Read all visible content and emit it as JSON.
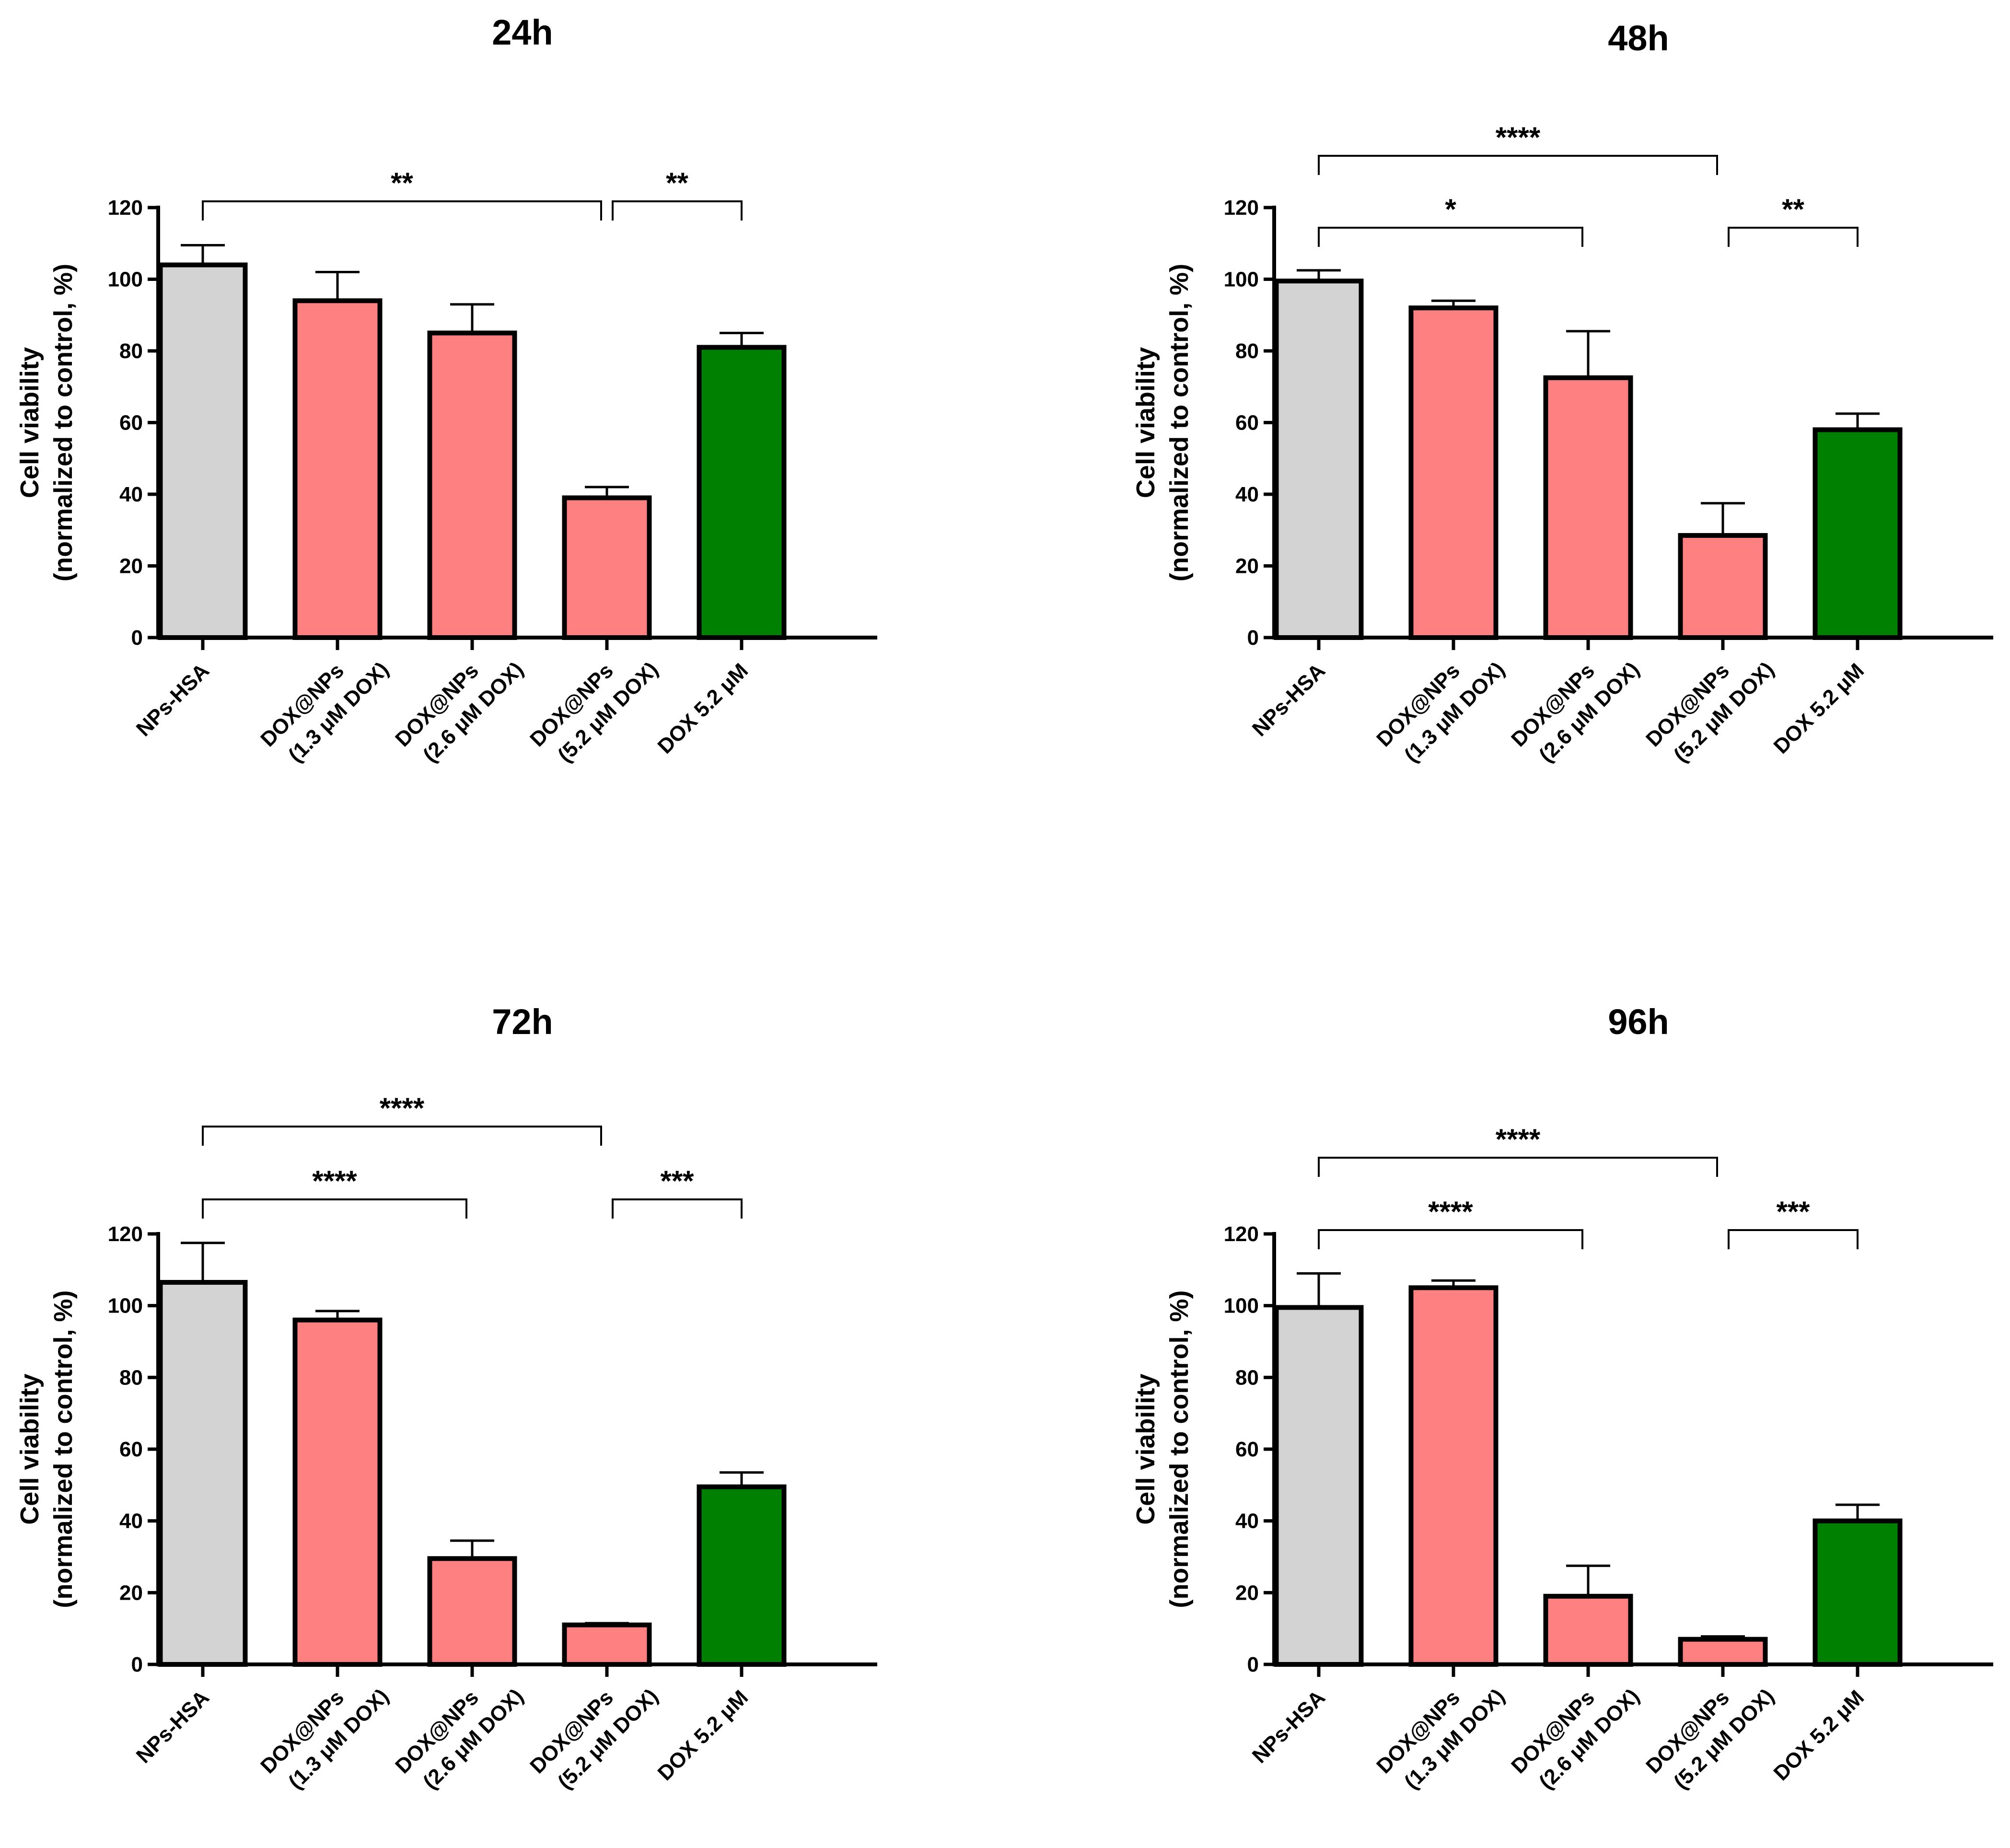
{
  "chart_data": [
    {
      "type": "bar",
      "title": "24h",
      "ylabel_line1": "Cell viability",
      "ylabel_line2": "(normalized to control, %)",
      "ylim": [
        0,
        120
      ],
      "yticks": [
        "0",
        "20",
        "40",
        "60",
        "80",
        "100",
        "120"
      ],
      "categories": [
        {
          "line1": "NPs-HSA",
          "line2": ""
        },
        {
          "line1": "DOX@NPs",
          "line2": "(1.3 μM DOX)"
        },
        {
          "line1": "DOX@NPs",
          "line2": "(2.6 μM DOX)"
        },
        {
          "line1": "DOX@NPs",
          "line2": "(5.2 μM DOX)"
        },
        {
          "line1": "DOX 5.2 μM",
          "line2": ""
        }
      ],
      "values": [
        104,
        94,
        85,
        39,
        81
      ],
      "errors": [
        5.5,
        8,
        8,
        3,
        4
      ],
      "colors": [
        "#d3d3d3",
        "#ff8080",
        "#ff8080",
        "#ff8080",
        "#008000"
      ],
      "significance": [
        {
          "from": 0,
          "to": 3,
          "level": 2,
          "label": "**"
        },
        {
          "from": 3,
          "to": 4,
          "level": 2,
          "label": "**"
        }
      ]
    },
    {
      "type": "bar",
      "title": "48h",
      "ylabel_line1": "Cell viability",
      "ylabel_line2": "(normalized to control, %)",
      "ylim": [
        0,
        120
      ],
      "yticks": [
        "0",
        "20",
        "40",
        "60",
        "80",
        "100",
        "120"
      ],
      "categories": [
        {
          "line1": "NPs-HSA",
          "line2": ""
        },
        {
          "line1": "DOX@NPs",
          "line2": "(1.3 μM DOX)"
        },
        {
          "line1": "DOX@NPs",
          "line2": "(2.6 μM DOX)"
        },
        {
          "line1": "DOX@NPs",
          "line2": "(5.2 μM DOX)"
        },
        {
          "line1": "DOX 5.2 μM",
          "line2": ""
        }
      ],
      "values": [
        99.5,
        92,
        72.5,
        28.5,
        58
      ],
      "errors": [
        3,
        2,
        13,
        9,
        4.5
      ],
      "colors": [
        "#d3d3d3",
        "#ff8080",
        "#ff8080",
        "#ff8080",
        "#008000"
      ],
      "significance": [
        {
          "from": 0,
          "to": 3,
          "level": 2,
          "label": "****"
        },
        {
          "from": 0,
          "to": 2,
          "level": 1,
          "label": "*"
        },
        {
          "from": 3,
          "to": 4,
          "level": 1,
          "label": "**"
        }
      ]
    },
    {
      "type": "bar",
      "title": "72h",
      "ylabel_line1": "Cell viability",
      "ylabel_line2": "(normalized to control, %)",
      "ylim": [
        0,
        120
      ],
      "yticks": [
        "0",
        "20",
        "40",
        "60",
        "80",
        "100",
        "120"
      ],
      "categories": [
        {
          "line1": "NPs-HSA",
          "line2": ""
        },
        {
          "line1": "DOX@NPs",
          "line2": "(1.3 μM DOX)"
        },
        {
          "line1": "DOX@NPs",
          "line2": "(2.6 μM DOX)"
        },
        {
          "line1": "DOX@NPs",
          "line2": "(5.2 μM DOX)"
        },
        {
          "line1": "DOX 5.2 μM",
          "line2": ""
        }
      ],
      "values": [
        106.5,
        96,
        29.5,
        11,
        49.5
      ],
      "errors": [
        11,
        2.5,
        5,
        0.5,
        4
      ],
      "colors": [
        "#d3d3d3",
        "#ff8080",
        "#ff8080",
        "#ff8080",
        "#008000"
      ],
      "significance": [
        {
          "from": 0,
          "to": 3,
          "level": 2,
          "label": "****"
        },
        {
          "from": 0,
          "to": 2,
          "level": 1,
          "label": "****"
        },
        {
          "from": 3,
          "to": 4,
          "level": 1,
          "label": "***"
        }
      ]
    },
    {
      "type": "bar",
      "title": "96h",
      "ylabel_line1": "Cell viability",
      "ylabel_line2": "(normalized to control, %)",
      "ylim": [
        0,
        120
      ],
      "yticks": [
        "0",
        "20",
        "40",
        "60",
        "80",
        "100",
        "120"
      ],
      "categories": [
        {
          "line1": "NPs-HSA",
          "line2": ""
        },
        {
          "line1": "DOX@NPs",
          "line2": "(1.3 μM DOX)"
        },
        {
          "line1": "DOX@NPs",
          "line2": "(2.6 μM DOX)"
        },
        {
          "line1": "DOX@NPs",
          "line2": "(5.2 μM DOX)"
        },
        {
          "line1": "DOX 5.2 μM",
          "line2": ""
        }
      ],
      "values": [
        99.5,
        105,
        19,
        7,
        40
      ],
      "errors": [
        9.5,
        2,
        8.5,
        0.8,
        4.5
      ],
      "colors": [
        "#d3d3d3",
        "#ff8080",
        "#ff8080",
        "#ff8080",
        "#008000"
      ],
      "significance": [
        {
          "from": 0,
          "to": 3,
          "level": 2,
          "label": "****"
        },
        {
          "from": 0,
          "to": 2,
          "level": 1,
          "label": "****"
        },
        {
          "from": 3,
          "to": 4,
          "level": 1,
          "label": "***"
        }
      ]
    }
  ]
}
